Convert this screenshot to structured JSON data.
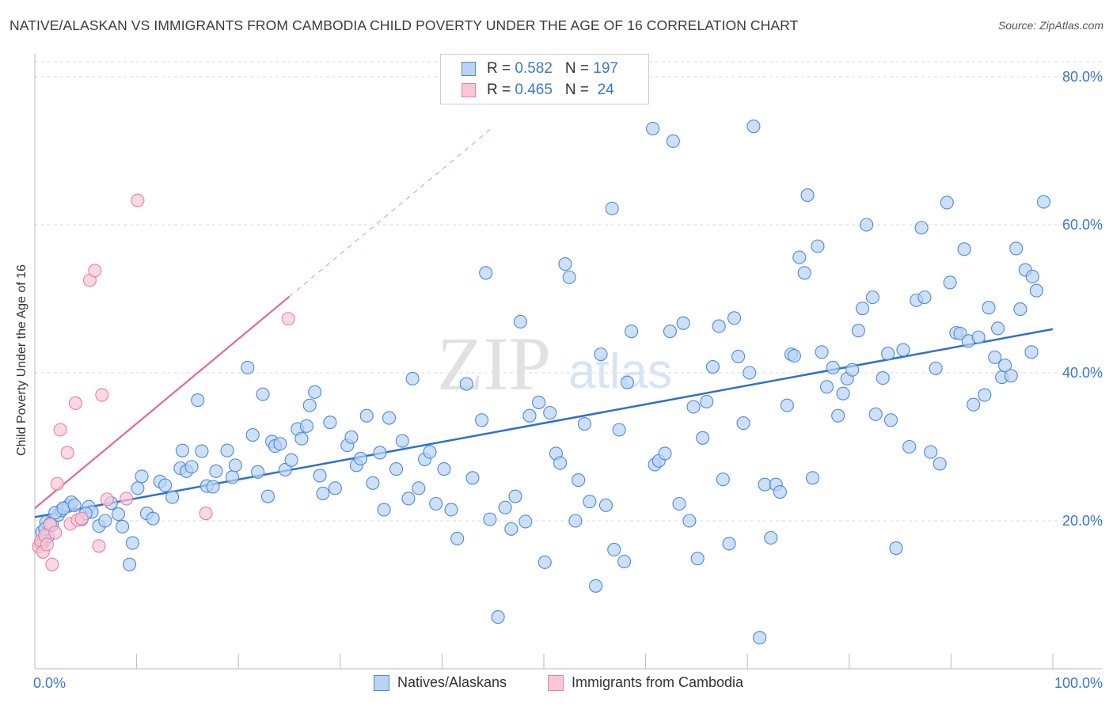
{
  "title": "NATIVE/ALASKAN VS IMMIGRANTS FROM CAMBODIA CHILD POVERTY UNDER THE AGE OF 16 CORRELATION CHART",
  "source": "Source: ZipAtlas.com",
  "watermark": {
    "zip": "ZIP",
    "atlas": "atlas"
  },
  "legend": {
    "r_label": "R = ",
    "n_label": "N = ",
    "rows": [
      {
        "r": "0.582",
        "n": "197",
        "color": "#4a8ad8"
      },
      {
        "r": "0.465",
        "n": " 24",
        "color": "#e87fa3"
      }
    ]
  },
  "bottom_legend": [
    {
      "label": "Natives/Alaskans",
      "fill": "#b9d3f5",
      "stroke": "#4a8ad8"
    },
    {
      "label": "Immigrants from Cambodia",
      "fill": "#f9c7d6",
      "stroke": "#e87fa3"
    }
  ],
  "chart_data": {
    "type": "scatter",
    "title": "NATIVE/ALASKAN VS IMMIGRANTS FROM CAMBODIA CHILD POVERTY UNDER THE AGE OF 16 CORRELATION CHART",
    "xlabel": "",
    "ylabel": "Child Poverty Under the Age of 16",
    "xlim": [
      0,
      100
    ],
    "ylim": [
      0,
      85
    ],
    "x_tick_labels": [
      "0.0%",
      "100.0%"
    ],
    "y_ticks": [
      20,
      40,
      60,
      80
    ],
    "y_tick_labels": [
      "20.0%",
      "40.0%",
      "60.0%",
      "80.0%"
    ],
    "grid": true,
    "series": [
      {
        "name": "Natives/Alaskans",
        "color": "#4a8ad8",
        "fill": "#b9d3f5",
        "r": 0.582,
        "n": 197,
        "trend": {
          "x": [
            0,
            100
          ],
          "y": [
            20.5,
            45.9
          ],
          "style": "solid"
        },
        "points": [
          [
            0.7,
            18.5
          ],
          [
            0.9,
            17.2
          ],
          [
            1.1,
            19.8
          ],
          [
            1.3,
            17.9
          ],
          [
            1.7,
            19.4
          ],
          [
            2.3,
            20.8
          ],
          [
            2.6,
            21.4
          ],
          [
            3.3,
            22.0
          ],
          [
            3.6,
            22.5
          ],
          [
            4.6,
            20.2
          ],
          [
            5.3,
            21.9
          ],
          [
            5.6,
            21.2
          ],
          [
            6.3,
            19.3
          ],
          [
            6.9,
            20.0
          ],
          [
            7.5,
            22.4
          ],
          [
            8.2,
            20.9
          ],
          [
            8.6,
            19.2
          ],
          [
            9.3,
            14.1
          ],
          [
            9.6,
            17.0
          ],
          [
            10.1,
            24.4
          ],
          [
            10.5,
            26.0
          ],
          [
            11.0,
            21.0
          ],
          [
            11.6,
            20.3
          ],
          [
            12.3,
            25.3
          ],
          [
            12.8,
            24.8
          ],
          [
            13.5,
            23.2
          ],
          [
            14.3,
            27.1
          ],
          [
            14.5,
            29.5
          ],
          [
            14.9,
            26.7
          ],
          [
            15.4,
            27.3
          ],
          [
            16.0,
            36.3
          ],
          [
            16.4,
            29.4
          ],
          [
            16.9,
            24.7
          ],
          [
            17.5,
            24.6
          ],
          [
            17.8,
            26.7
          ],
          [
            18.9,
            29.5
          ],
          [
            19.4,
            25.9
          ],
          [
            19.7,
            27.5
          ],
          [
            20.9,
            40.7
          ],
          [
            21.4,
            31.6
          ],
          [
            21.9,
            26.6
          ],
          [
            22.4,
            37.1
          ],
          [
            22.9,
            23.3
          ],
          [
            23.3,
            30.7
          ],
          [
            23.6,
            30.1
          ],
          [
            24.1,
            30.4
          ],
          [
            24.6,
            26.9
          ],
          [
            25.2,
            28.2
          ],
          [
            25.8,
            32.4
          ],
          [
            26.2,
            31.1
          ],
          [
            26.7,
            32.8
          ],
          [
            27.0,
            35.6
          ],
          [
            27.5,
            37.4
          ],
          [
            28.0,
            26.1
          ],
          [
            28.3,
            23.7
          ],
          [
            29.0,
            33.3
          ],
          [
            29.5,
            24.4
          ],
          [
            30.7,
            30.2
          ],
          [
            31.1,
            31.3
          ],
          [
            31.6,
            27.5
          ],
          [
            32.0,
            28.4
          ],
          [
            32.6,
            34.2
          ],
          [
            33.2,
            25.1
          ],
          [
            33.9,
            29.2
          ],
          [
            34.3,
            21.5
          ],
          [
            34.8,
            33.9
          ],
          [
            35.5,
            27.0
          ],
          [
            36.1,
            30.8
          ],
          [
            36.7,
            23.0
          ],
          [
            37.1,
            39.2
          ],
          [
            37.7,
            24.4
          ],
          [
            38.3,
            28.3
          ],
          [
            38.8,
            29.3
          ],
          [
            39.4,
            22.3
          ],
          [
            40.2,
            27.0
          ],
          [
            40.9,
            21.5
          ],
          [
            41.5,
            17.6
          ],
          [
            42.4,
            38.5
          ],
          [
            43.0,
            25.8
          ],
          [
            43.9,
            33.6
          ],
          [
            44.3,
            53.5
          ],
          [
            44.7,
            20.2
          ],
          [
            45.5,
            7.0
          ],
          [
            46.2,
            21.8
          ],
          [
            46.8,
            18.9
          ],
          [
            47.2,
            23.3
          ],
          [
            47.7,
            46.9
          ],
          [
            48.2,
            19.9
          ],
          [
            48.6,
            34.2
          ],
          [
            49.5,
            36.0
          ],
          [
            50.1,
            14.4
          ],
          [
            50.6,
            34.6
          ],
          [
            51.2,
            29.1
          ],
          [
            51.6,
            27.8
          ],
          [
            52.1,
            54.7
          ],
          [
            52.5,
            52.9
          ],
          [
            53.1,
            20.0
          ],
          [
            53.4,
            25.5
          ],
          [
            54.0,
            33.1
          ],
          [
            54.5,
            22.6
          ],
          [
            55.1,
            11.2
          ],
          [
            55.6,
            42.5
          ],
          [
            56.1,
            22.1
          ],
          [
            56.7,
            62.2
          ],
          [
            56.9,
            16.1
          ],
          [
            57.4,
            32.3
          ],
          [
            57.9,
            14.5
          ],
          [
            58.2,
            38.7
          ],
          [
            58.6,
            45.6
          ],
          [
            60.7,
            73.0
          ],
          [
            60.9,
            27.6
          ],
          [
            61.3,
            28.1
          ],
          [
            61.9,
            29.1
          ],
          [
            62.4,
            45.6
          ],
          [
            62.7,
            71.3
          ],
          [
            63.3,
            22.3
          ],
          [
            63.7,
            46.7
          ],
          [
            64.3,
            20.0
          ],
          [
            64.7,
            35.4
          ],
          [
            65.1,
            14.9
          ],
          [
            65.6,
            31.2
          ],
          [
            66.0,
            36.1
          ],
          [
            66.6,
            40.8
          ],
          [
            67.2,
            46.3
          ],
          [
            67.6,
            25.6
          ],
          [
            68.2,
            16.9
          ],
          [
            68.7,
            47.4
          ],
          [
            69.1,
            42.2
          ],
          [
            69.6,
            33.2
          ],
          [
            70.2,
            40.0
          ],
          [
            70.6,
            73.3
          ],
          [
            71.2,
            4.2
          ],
          [
            71.7,
            24.9
          ],
          [
            72.3,
            17.7
          ],
          [
            72.8,
            24.9
          ],
          [
            73.2,
            23.9
          ],
          [
            73.9,
            35.6
          ],
          [
            74.3,
            42.5
          ],
          [
            74.6,
            42.3
          ],
          [
            75.1,
            55.6
          ],
          [
            75.6,
            53.5
          ],
          [
            75.9,
            64.0
          ],
          [
            76.4,
            25.8
          ],
          [
            76.9,
            57.1
          ],
          [
            77.3,
            42.8
          ],
          [
            77.8,
            38.1
          ],
          [
            78.4,
            40.7
          ],
          [
            78.9,
            34.2
          ],
          [
            79.4,
            37.2
          ],
          [
            79.8,
            39.2
          ],
          [
            80.3,
            40.4
          ],
          [
            80.9,
            45.7
          ],
          [
            81.3,
            48.7
          ],
          [
            81.7,
            60.0
          ],
          [
            82.3,
            50.2
          ],
          [
            82.6,
            34.4
          ],
          [
            83.3,
            39.3
          ],
          [
            83.8,
            42.6
          ],
          [
            84.1,
            33.6
          ],
          [
            84.6,
            16.3
          ],
          [
            85.3,
            43.1
          ],
          [
            85.9,
            30.0
          ],
          [
            86.6,
            49.8
          ],
          [
            87.1,
            59.6
          ],
          [
            87.4,
            50.2
          ],
          [
            88.0,
            29.3
          ],
          [
            88.5,
            40.6
          ],
          [
            88.9,
            27.7
          ],
          [
            89.6,
            63.0
          ],
          [
            89.9,
            52.2
          ],
          [
            90.5,
            45.4
          ],
          [
            90.9,
            45.3
          ],
          [
            91.3,
            56.7
          ],
          [
            91.7,
            44.3
          ],
          [
            92.2,
            35.7
          ],
          [
            92.7,
            44.8
          ],
          [
            93.3,
            37.0
          ],
          [
            93.7,
            48.8
          ],
          [
            94.3,
            42.1
          ],
          [
            94.6,
            46.0
          ],
          [
            95.0,
            39.4
          ],
          [
            95.3,
            41.0
          ],
          [
            95.9,
            39.6
          ],
          [
            96.4,
            56.8
          ],
          [
            96.8,
            48.6
          ],
          [
            97.3,
            53.9
          ],
          [
            97.9,
            42.8
          ],
          [
            98.4,
            51.1
          ],
          [
            99.1,
            63.1
          ],
          [
            98.0,
            53.0
          ],
          [
            0.6,
            16.9
          ],
          [
            1.0,
            18.9
          ],
          [
            1.5,
            19.6
          ],
          [
            2.0,
            21.1
          ],
          [
            2.8,
            21.7
          ],
          [
            3.9,
            22.1
          ],
          [
            5.0,
            21.0
          ]
        ]
      },
      {
        "name": "Immigrants from Cambodia",
        "color": "#e87fa3",
        "fill": "#f9c7d6",
        "r": 0.465,
        "n": 24,
        "trend": {
          "x": [
            0,
            25
          ],
          "y": [
            21.7,
            50.3
          ],
          "style": "solid",
          "extended_to": [
            45,
            73.2
          ],
          "extended_style": "dashed"
        },
        "points": [
          [
            0.4,
            16.5
          ],
          [
            0.6,
            17.3
          ],
          [
            0.8,
            15.8
          ],
          [
            1.0,
            18.0
          ],
          [
            1.2,
            16.8
          ],
          [
            1.5,
            19.5
          ],
          [
            1.7,
            14.1
          ],
          [
            2.0,
            18.4
          ],
          [
            2.2,
            25.0
          ],
          [
            2.5,
            32.3
          ],
          [
            3.2,
            29.2
          ],
          [
            3.5,
            19.6
          ],
          [
            4.0,
            35.9
          ],
          [
            4.2,
            20.1
          ],
          [
            4.6,
            20.3
          ],
          [
            5.4,
            52.5
          ],
          [
            5.9,
            53.8
          ],
          [
            6.3,
            16.6
          ],
          [
            6.6,
            37.0
          ],
          [
            7.1,
            22.9
          ],
          [
            9.0,
            23.0
          ],
          [
            10.1,
            63.3
          ],
          [
            16.8,
            21.0
          ],
          [
            24.9,
            47.3
          ]
        ]
      }
    ]
  }
}
